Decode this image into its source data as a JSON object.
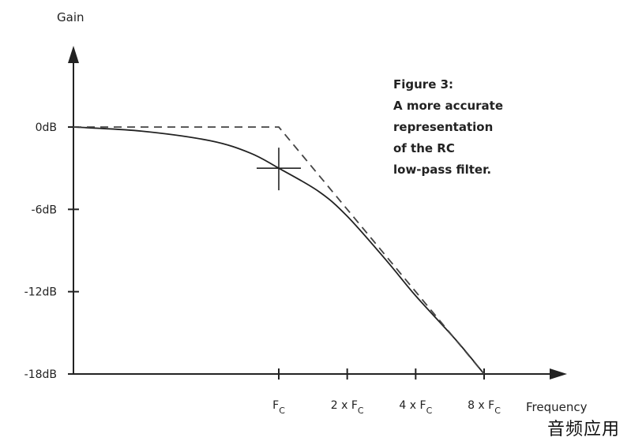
{
  "chart_data": {
    "type": "line",
    "x_scale": "log2",
    "xlabel": "Frequency",
    "ylabel": "Gain",
    "x_ticks": [
      {
        "value": 1,
        "prefix": "",
        "main": "F",
        "sub": "C"
      },
      {
        "value": 2,
        "prefix": "2 x ",
        "main": "F",
        "sub": "C"
      },
      {
        "value": 4,
        "prefix": "4 x ",
        "main": "F",
        "sub": "C"
      },
      {
        "value": 8,
        "prefix": "8 x ",
        "main": "F",
        "sub": "C"
      }
    ],
    "y_ticks": [
      {
        "value": 0,
        "label": "0dB"
      },
      {
        "value": -6,
        "label": "-6dB"
      },
      {
        "value": -12,
        "label": "-12dB"
      },
      {
        "value": -18,
        "label": "-18dB"
      }
    ],
    "xlim": [
      0.125,
      8
    ],
    "ylim": [
      -18,
      0
    ],
    "series": [
      {
        "style": "solid",
        "x": [
          0.125,
          0.25,
          0.5,
          0.75,
          1,
          1.5,
          2,
          3,
          4,
          6,
          8
        ],
        "y": [
          0,
          -0.3,
          -1.0,
          -1.9,
          -3,
          -4.7,
          -6.5,
          -9.8,
          -12.3,
          -15.5,
          -18
        ]
      },
      {
        "style": "dashed",
        "x": [
          0.125,
          1,
          8
        ],
        "y": [
          0,
          0,
          -18
        ]
      }
    ],
    "marker": {
      "x": 1,
      "y": -3,
      "shape": "cross"
    },
    "caption": [
      "Figure 3:",
      "A more accurate",
      "representation",
      "of the RC",
      "low-pass filter."
    ]
  },
  "watermark": "音频应用"
}
